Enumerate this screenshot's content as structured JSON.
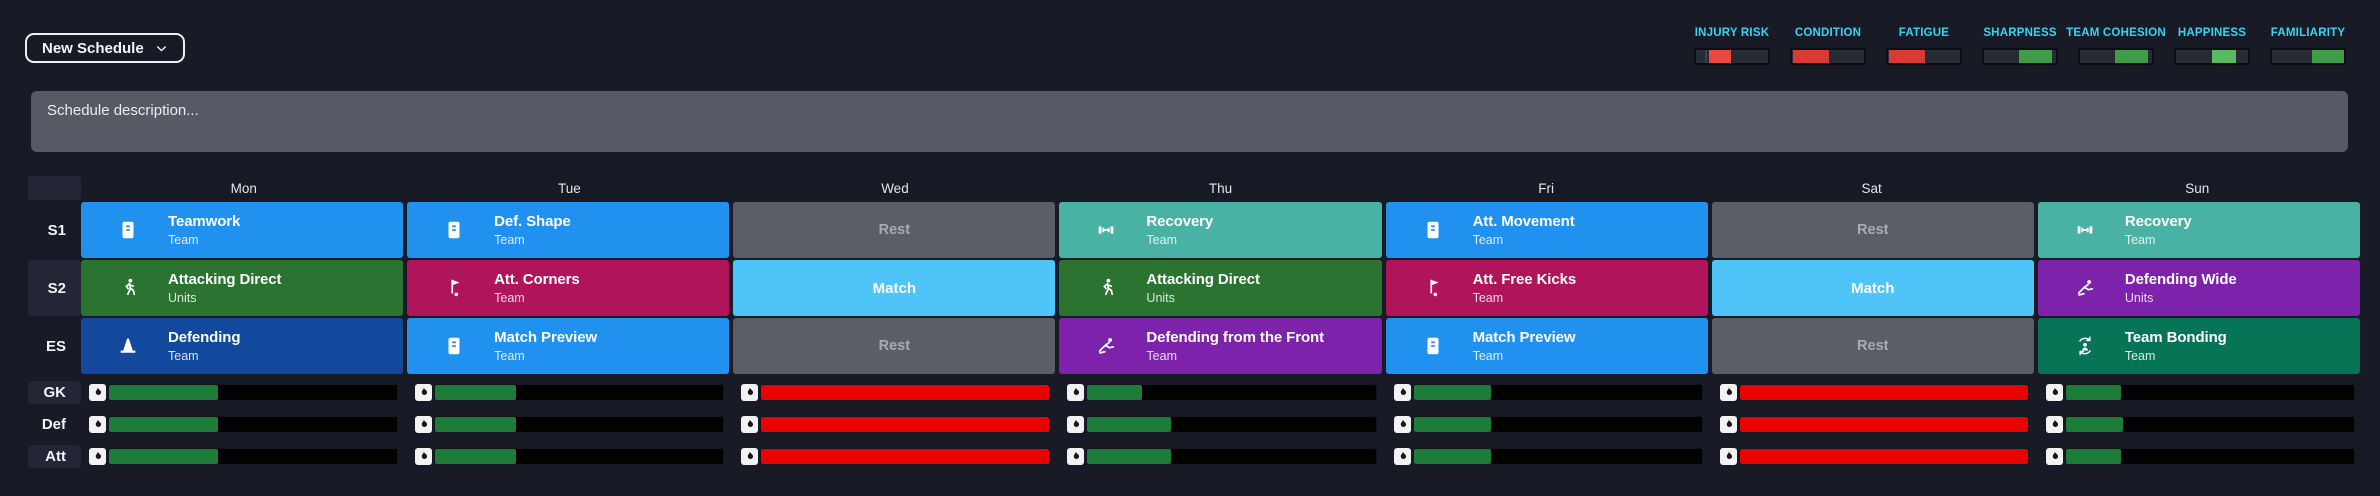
{
  "toolbar": {
    "new_schedule_label": "New Schedule"
  },
  "metrics": [
    {
      "label": "INJURY RISK",
      "color": "#e8493f",
      "start": 18,
      "end": 48
    },
    {
      "label": "CONDITION",
      "color": "#da3a32",
      "start": 2,
      "end": 52
    },
    {
      "label": "FATIGUE",
      "color": "#da3a32",
      "start": 2,
      "end": 52
    },
    {
      "label": "SHARPNESS",
      "color": "#3f9c49",
      "start": 48,
      "end": 95
    },
    {
      "label": "TEAM COHESION",
      "color": "#3f9c49",
      "start": 48,
      "end": 95
    },
    {
      "label": "HAPPINESS",
      "color": "#58ba5e",
      "start": 50,
      "end": 84
    },
    {
      "label": "FAMILIARITY",
      "color": "#3f9c49",
      "start": 55,
      "end": 100
    }
  ],
  "description": {
    "placeholder": "Schedule description..."
  },
  "table": {
    "days": [
      "Mon",
      "Tue",
      "Wed",
      "Thu",
      "Fri",
      "Sat",
      "Sun"
    ],
    "session_rows": [
      {
        "label": "S1",
        "cells": [
          {
            "title": "Teamwork",
            "subtitle": "Team",
            "icon": "tactics-board",
            "category": "general"
          },
          {
            "title": "Def. Shape",
            "subtitle": "Team",
            "icon": "tactics-board",
            "category": "general"
          },
          {
            "title": "Rest",
            "category": "rest"
          },
          {
            "title": "Recovery",
            "subtitle": "Team",
            "icon": "dumbbell",
            "category": "recovery"
          },
          {
            "title": "Att. Movement",
            "subtitle": "Team",
            "icon": "tactics-board",
            "category": "general"
          },
          {
            "title": "Rest",
            "category": "rest"
          },
          {
            "title": "Recovery",
            "subtitle": "Team",
            "icon": "dumbbell",
            "category": "recovery"
          }
        ]
      },
      {
        "label": "S2",
        "cells": [
          {
            "title": "Attacking Direct",
            "subtitle": "Units",
            "icon": "runner",
            "category": "attacking"
          },
          {
            "title": "Att. Corners",
            "subtitle": "Team",
            "icon": "corner-flag",
            "category": "set-pieces"
          },
          {
            "title": "Match",
            "category": "match"
          },
          {
            "title": "Attacking Direct",
            "subtitle": "Units",
            "icon": "runner",
            "category": "attacking"
          },
          {
            "title": "Att. Free Kicks",
            "subtitle": "Team",
            "icon": "corner-flag",
            "category": "set-pieces"
          },
          {
            "title": "Match",
            "category": "match"
          },
          {
            "title": "Defending Wide",
            "subtitle": "Units",
            "icon": "slide-tackle",
            "category": "defending-tactical"
          }
        ]
      },
      {
        "label": "ES",
        "cells": [
          {
            "title": "Defending",
            "subtitle": "Team",
            "icon": "cone",
            "category": "defending"
          },
          {
            "title": "Match Preview",
            "subtitle": "Team",
            "icon": "tactics-board",
            "category": "general"
          },
          {
            "title": "Rest",
            "category": "rest"
          },
          {
            "title": "Defending from the Front",
            "subtitle": "Team",
            "icon": "slide-tackle",
            "category": "defending-tactical"
          },
          {
            "title": "Match Preview",
            "subtitle": "Team",
            "icon": "tactics-board",
            "category": "general"
          },
          {
            "title": "Rest",
            "category": "rest"
          },
          {
            "title": "Team Bonding",
            "subtitle": "Team",
            "icon": "team-bonding",
            "category": "bonding"
          }
        ]
      }
    ],
    "load_rows": [
      {
        "label": "GK",
        "bars": [
          {
            "pct": 38,
            "color": "#1e7c39"
          },
          {
            "pct": 28,
            "color": "#1e7c39"
          },
          {
            "pct": 100,
            "color": "#e80202"
          },
          {
            "pct": 19,
            "color": "#1e7c39"
          },
          {
            "pct": 27,
            "color": "#1e7c39"
          },
          {
            "pct": 100,
            "color": "#e80202"
          },
          {
            "pct": 19,
            "color": "#1e7c39"
          }
        ]
      },
      {
        "label": "Def",
        "bars": [
          {
            "pct": 38,
            "color": "#1e7c39"
          },
          {
            "pct": 28,
            "color": "#1e7c39"
          },
          {
            "pct": 100,
            "color": "#e80202"
          },
          {
            "pct": 29,
            "color": "#1e7c39"
          },
          {
            "pct": 27,
            "color": "#1e7c39"
          },
          {
            "pct": 100,
            "color": "#e80202"
          },
          {
            "pct": 20,
            "color": "#1e7c39"
          }
        ]
      },
      {
        "label": "Att",
        "bars": [
          {
            "pct": 38,
            "color": "#1e7c39"
          },
          {
            "pct": 28,
            "color": "#1e7c39"
          },
          {
            "pct": 100,
            "color": "#e80202"
          },
          {
            "pct": 29,
            "color": "#1e7c39"
          },
          {
            "pct": 27,
            "color": "#1e7c39"
          },
          {
            "pct": 100,
            "color": "#e80202"
          },
          {
            "pct": 19,
            "color": "#1e7c39"
          }
        ]
      }
    ]
  },
  "colors": {
    "background": "#181b26",
    "general_blue": "#2191f0",
    "recovery_teal": "#49b2a5",
    "rest_gray": "#5a5e67",
    "attacking_green": "#2b7330",
    "set_piece_crimson": "#b0145a",
    "match_light_blue": "#4ec4f8",
    "tactical_purple": "#7d22ab",
    "defending_navy": "#12499c",
    "bonding_dark_green": "#087456",
    "load_green": "#1e7c39",
    "load_red": "#e80202",
    "metric_label_cyan": "#35d4f2"
  }
}
